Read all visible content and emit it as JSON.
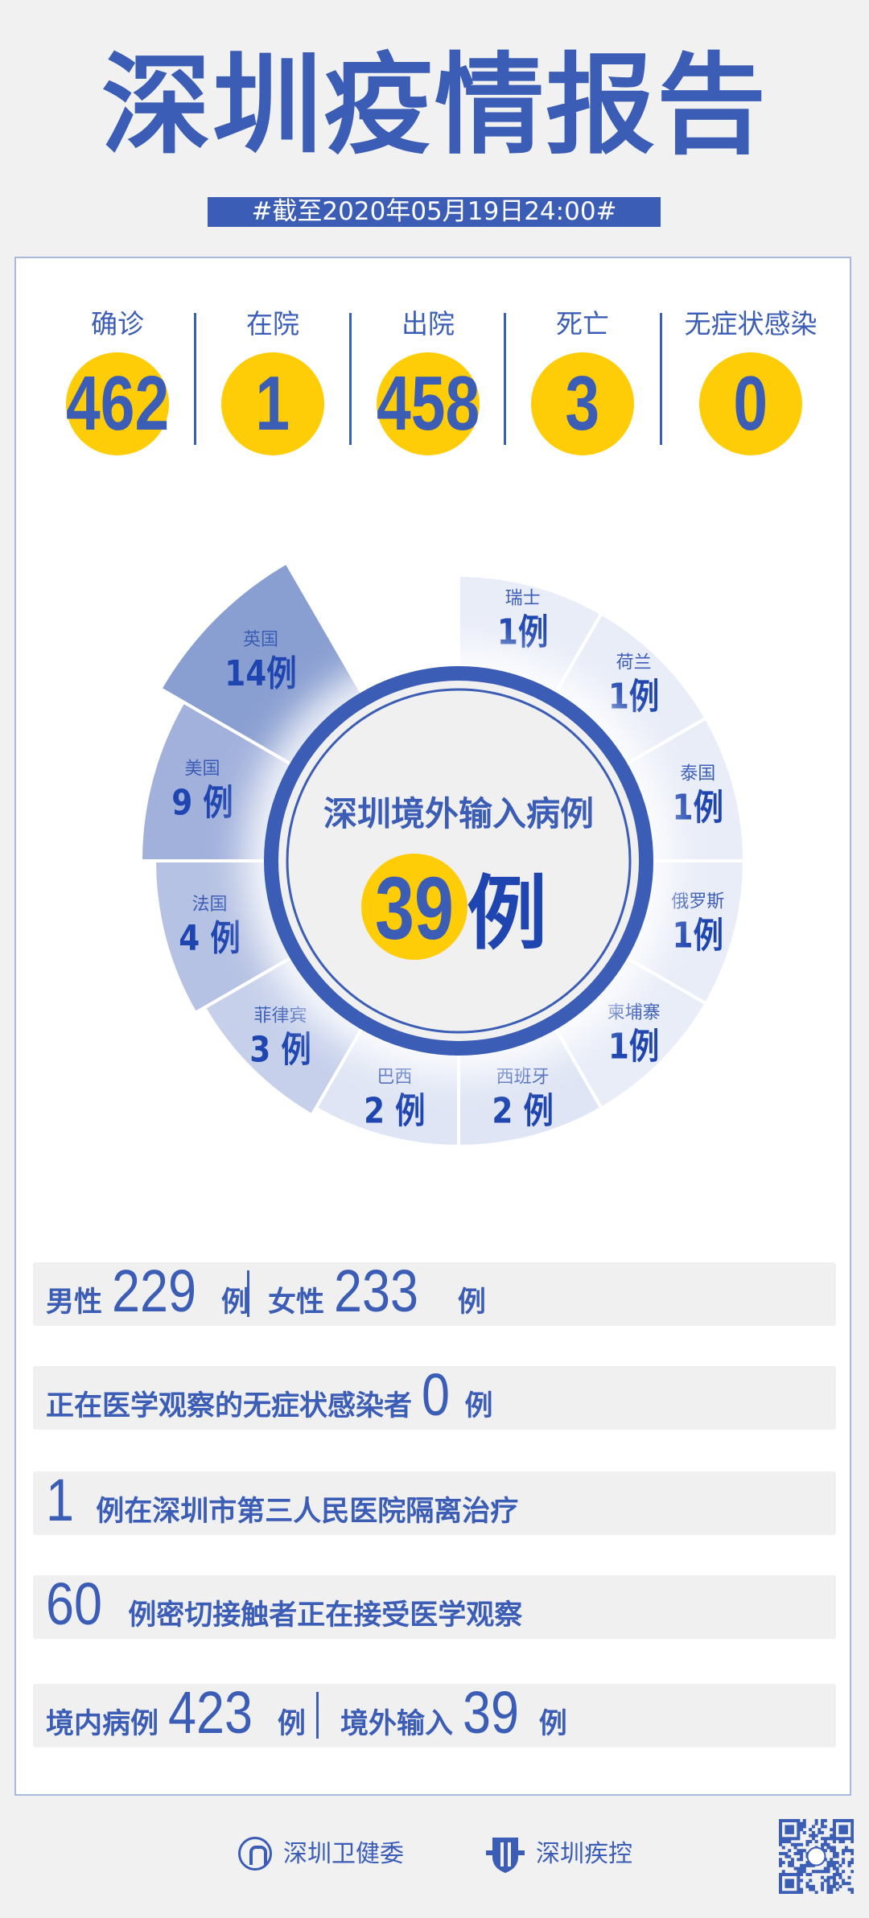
{
  "header": {
    "title": "深圳疫情报告",
    "date_banner": "#截至2020年05月19日24:00#"
  },
  "stats": [
    {
      "label": "确诊",
      "value": "462"
    },
    {
      "label": "在院",
      "value": "1"
    },
    {
      "label": "出院",
      "value": "458"
    },
    {
      "label": "死亡",
      "value": "3"
    },
    {
      "label": "无症状感染",
      "value": "0"
    }
  ],
  "chart_data": {
    "type": "pie",
    "center_title": "深圳境外输入病例",
    "center_value": "39",
    "unit": "例",
    "categories": [
      "瑞士",
      "荷兰",
      "泰国",
      "俄罗斯",
      "柬埔寨",
      "西班牙",
      "巴西",
      "菲律宾",
      "法国",
      "美国",
      "英国"
    ],
    "values": [
      1,
      1,
      1,
      1,
      1,
      2,
      2,
      3,
      4,
      9,
      14
    ],
    "colors": [
      "#e9edf8",
      "#e9edf8",
      "#e9edf8",
      "#e9edf8",
      "#e9edf8",
      "#dfe5f4",
      "#dfe5f4",
      "#c6d0eb",
      "#b6c2e3",
      "#a2b1dc",
      "#8a9fd1"
    ]
  },
  "rows": {
    "gender": {
      "male_label": "男性",
      "male_value": "229",
      "female_label": "女性",
      "female_value": "233",
      "unit": "例"
    },
    "asymptomatic": {
      "text": "正在医学观察的无症状感染者",
      "value": "0",
      "unit": "例"
    },
    "hospital": {
      "value": "1",
      "text": "例在深圳市第三人民医院隔离治疗"
    },
    "contacts": {
      "value": "60",
      "text": "例密切接触者正在接受医学观察"
    },
    "origin": {
      "local_label": "境内病例",
      "local_value": "423",
      "import_label": "境外输入",
      "import_value": "39",
      "unit": "例"
    }
  },
  "footer": {
    "org1": "深圳卫健委",
    "org2": "深圳疾控"
  },
  "colors": {
    "primary": "#3b5db5",
    "accent": "#ffcc08",
    "background": "#f1f1f1"
  }
}
